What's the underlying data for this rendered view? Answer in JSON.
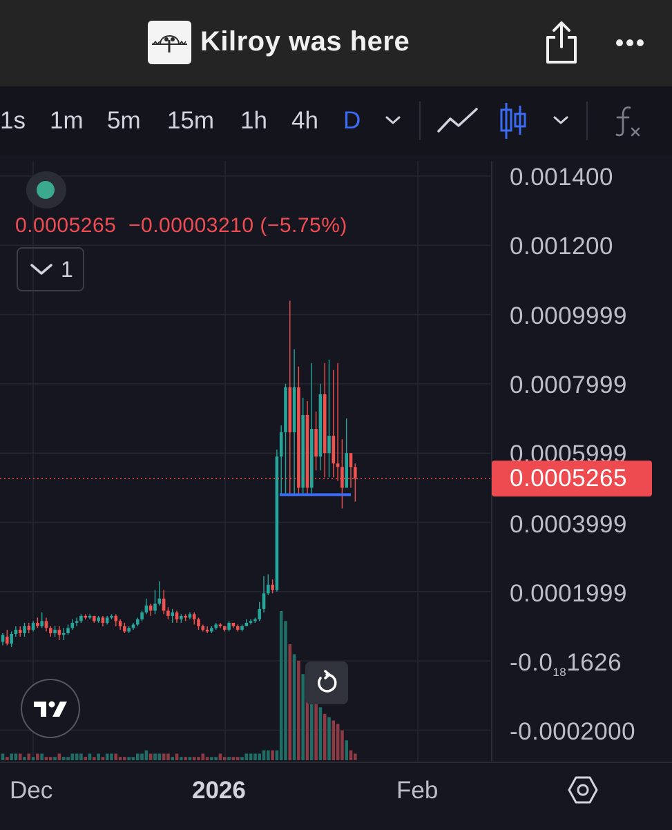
{
  "header": {
    "title": "Kilroy was here",
    "logo_icon": "kilroy-logo",
    "share_icon": "share-icon",
    "more_icon": "more-icon"
  },
  "toolbar": {
    "timeframes": [
      {
        "label": "1s",
        "active": false
      },
      {
        "label": "1m",
        "active": false
      },
      {
        "label": "5m",
        "active": false
      },
      {
        "label": "15m",
        "active": false
      },
      {
        "label": "1h",
        "active": false
      },
      {
        "label": "4h",
        "active": false
      },
      {
        "label": "D",
        "active": true
      }
    ],
    "accent_color": "#3b6cf5",
    "icons": [
      "chevron-down-icon",
      "line-chart-icon",
      "candlestick-icon",
      "chevron-down-icon",
      "indicators-icon"
    ]
  },
  "legend": {
    "price": "0.0005265",
    "change": "−0.00003210",
    "change_pct": "(−5.75%)",
    "toggle_count": "1",
    "status_color": "#3ba98c"
  },
  "price_axis": {
    "labels": [
      "0.001400",
      "0.001200",
      "0.0009999",
      "0.0007999",
      "0.0005999",
      "0.0003999",
      "0.0001999"
    ],
    "neg1_prefix": "-0.0",
    "neg1_sub": "18",
    "neg1_suffix": "1626",
    "neg2": "-0.0002000",
    "current_price": "0.0005265",
    "current_price_color": "#ee4b50"
  },
  "time_axis": {
    "labels": [
      "Dec",
      "2026",
      "Feb"
    ],
    "settings_icon": "settings-icon"
  },
  "chart_data": {
    "type": "candlestick",
    "title": "",
    "interval": "D",
    "ylim": [
      -0.00021,
      0.00143
    ],
    "up_color": "#26a69a",
    "down_color": "#ef5350",
    "support_line": 0.00048,
    "last_price": 0.0005265,
    "candles": [
      [
        5.5e-05,
        7.5e-05,
        4.5e-05,
        8e-05
      ],
      [
        7e-05,
        5e-05,
        4.5e-05,
        9e-05
      ],
      [
        5e-05,
        7.8e-05,
        4e-05,
        8.5e-05
      ],
      [
        7.8e-05,
        9e-05,
        7e-05,
        0.0001
      ],
      [
        9e-05,
        8e-05,
        7e-05,
        0.0001
      ],
      [
        8e-05,
        0.0001,
        7e-05,
        0.00011
      ],
      [
        0.0001,
        9e-05,
        8e-05,
        0.00011
      ],
      [
        9e-05,
        0.00011,
        8.5e-05,
        0.000115
      ],
      [
        0.00011,
        0.0001,
        9.5e-05,
        0.000125
      ],
      [
        0.0001,
        0.000115,
        9.5e-05,
        0.00014
      ],
      [
        0.000115,
        9.5e-05,
        8.5e-05,
        0.000125
      ],
      [
        9.5e-05,
        8e-05,
        7e-05,
        0.0001
      ],
      [
        8e-05,
        9e-05,
        7e-05,
        0.0001
      ],
      [
        9e-05,
        7.5e-05,
        6e-05,
        0.0001
      ],
      [
        7.5e-05,
        8e-05,
        6e-05,
        9.5e-05
      ],
      [
        8e-05,
        9.5e-05,
        7.5e-05,
        0.000105
      ],
      [
        9.5e-05,
        0.00011,
        9e-05,
        0.00012
      ],
      [
        0.00011,
        0.000115,
        0.0001,
        0.000125
      ],
      [
        0.000115,
        0.00013,
        0.00011,
        0.000135
      ],
      [
        0.00013,
        0.000125,
        0.00012,
        0.000135
      ],
      [
        0.000125,
        0.00013,
        0.00012,
        0.000135
      ],
      [
        0.00013,
        0.000115,
        0.00011,
        0.00013
      ],
      [
        0.000115,
        0.000125,
        0.00011,
        0.00013
      ],
      [
        0.000125,
        0.00011,
        0.0001,
        0.00013
      ],
      [
        0.00011,
        0.000125,
        0.000105,
        0.00013
      ],
      [
        0.000125,
        0.00013,
        0.00012,
        0.000135
      ],
      [
        0.00013,
        0.000115,
        0.0001,
        0.000135
      ],
      [
        0.000115,
        0.0001,
        9e-05,
        0.00012
      ],
      [
        0.0001,
        8.5e-05,
        8e-05,
        0.00011
      ],
      [
        8.5e-05,
        9.5e-05,
        8e-05,
        0.0001
      ],
      [
        9.5e-05,
        0.000105,
        9e-05,
        0.00011
      ],
      [
        0.000105,
        0.00012,
        0.0001,
        0.000125
      ],
      [
        0.00012,
        0.00014,
        0.000115,
        0.000145
      ],
      [
        0.00014,
        0.00016,
        0.000135,
        0.00018
      ],
      [
        0.00016,
        0.000145,
        0.00013,
        0.000165
      ],
      [
        0.000145,
        0.000165,
        0.000135,
        0.000205
      ],
      [
        0.000165,
        0.00018,
        0.00016,
        0.00023
      ],
      [
        0.00018,
        0.000145,
        0.000135,
        0.000205
      ],
      [
        0.000145,
        0.00013,
        0.00012,
        0.000155
      ],
      [
        0.00013,
        0.00014,
        0.00011,
        0.00015
      ],
      [
        0.00014,
        0.00012,
        0.00011,
        0.000145
      ],
      [
        0.00012,
        0.00013,
        0.00011,
        0.000135
      ],
      [
        0.00013,
        0.000125,
        0.000115,
        0.000135
      ],
      [
        0.000125,
        0.000135,
        0.00012,
        0.00014
      ],
      [
        0.000135,
        0.00012,
        0.000105,
        0.00014
      ],
      [
        0.00012,
        0.0001,
        9e-05,
        0.000125
      ],
      [
        0.0001,
        9e-05,
        8.5e-05,
        0.000105
      ],
      [
        9e-05,
        8.5e-05,
        8e-05,
        0.0001
      ],
      [
        8.5e-05,
        9.5e-05,
        8e-05,
        0.0001
      ],
      [
        9.5e-05,
        0.000105,
        9e-05,
        0.00011
      ],
      [
        0.000105,
        0.0001,
        9.5e-05,
        0.00011
      ],
      [
        0.0001,
        9e-05,
        8.5e-05,
        0.0001
      ],
      [
        9e-05,
        0.00011,
        8.5e-05,
        0.000115
      ],
      [
        0.00011,
        0.0001,
        9.5e-05,
        0.00011
      ],
      [
        0.0001,
        9e-05,
        8.5e-05,
        0.000105
      ],
      [
        9e-05,
        0.0001,
        8.5e-05,
        0.000105
      ],
      [
        0.0001,
        0.00011,
        0.0001,
        0.00012
      ],
      [
        0.00011,
        0.000115,
        0.000105,
        0.00012
      ],
      [
        0.000115,
        0.00012,
        0.00011,
        0.000125
      ],
      [
        0.00012,
        0.00015,
        0.000115,
        0.00017
      ],
      [
        0.00015,
        0.000195,
        0.00014,
        0.000245
      ],
      [
        0.000195,
        0.00022,
        0.00019,
        0.00025
      ],
      [
        0.00022,
        0.000205,
        0.000195,
        0.000235
      ],
      [
        0.000205,
        0.00059,
        0.0002,
        0.00061
      ],
      [
        0.00059,
        0.00066,
        0.00048,
        0.00068
      ],
      [
        0.00066,
        0.00079,
        0.00048,
        0.0008
      ],
      [
        0.00079,
        0.00066,
        0.00048,
        0.00104
      ],
      [
        0.00066,
        0.00079,
        0.00048,
        0.0009
      ],
      [
        0.00079,
        0.0005,
        0.00048,
        0.00085
      ],
      [
        0.0005,
        0.00071,
        0.00048,
        0.00076
      ],
      [
        0.00071,
        0.0005,
        0.00048,
        0.00075
      ],
      [
        0.0005,
        0.00067,
        0.00048,
        0.00086
      ],
      [
        0.00067,
        0.00059,
        0.00055,
        0.00072
      ],
      [
        0.00059,
        0.00077,
        0.00055,
        0.0008
      ],
      [
        0.00077,
        0.0006,
        0.00053,
        0.00086
      ],
      [
        0.0006,
        0.00065,
        0.00053,
        0.00087
      ],
      [
        0.00065,
        0.00057,
        0.00053,
        0.00084
      ],
      [
        0.00057,
        0.00056,
        0.00052,
        0.00086
      ],
      [
        0.00056,
        0.0005,
        0.00044,
        0.00064
      ],
      [
        0.0005,
        0.0006,
        0.0005,
        0.0007
      ],
      [
        0.0006,
        0.00056,
        0.0005,
        0.0006
      ],
      [
        0.00056,
        0.000527,
        0.00046,
        0.00057
      ]
    ],
    "volumes": [
      2,
      1,
      2,
      2,
      2,
      1,
      2,
      1,
      2,
      2,
      1,
      1,
      1,
      2,
      1,
      1,
      2,
      2,
      2,
      1,
      2,
      1,
      2,
      1,
      2,
      2,
      2,
      1,
      1,
      1,
      1,
      2,
      2,
      3,
      2,
      2,
      2,
      2,
      2,
      1,
      2,
      1,
      1,
      1,
      1,
      1,
      2,
      1,
      1,
      1,
      2,
      1,
      1,
      1,
      1,
      1,
      2,
      2,
      2,
      2,
      3,
      3,
      3,
      3,
      45,
      42,
      35,
      32,
      30,
      26,
      22,
      20,
      18,
      16,
      14,
      13,
      12,
      11,
      9,
      6,
      3,
      2
    ]
  }
}
